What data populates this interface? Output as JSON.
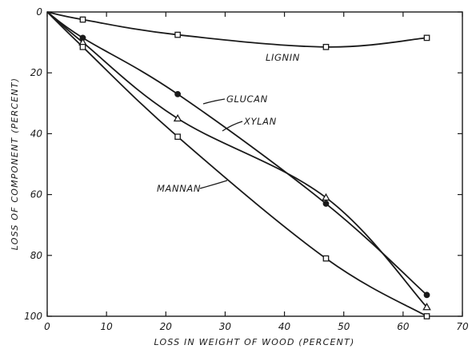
{
  "chart_data": {
    "type": "line",
    "xlabel": "LOSS IN WEIGHT OF WOOD (PERCENT)",
    "ylabel": "LOSS OF COMPONENT (PERCENT)",
    "xlim": [
      0,
      70
    ],
    "ylim": [
      0,
      100
    ],
    "y_inverted": true,
    "x_ticks": [
      0,
      10,
      20,
      30,
      40,
      50,
      60,
      70
    ],
    "y_ticks": [
      0,
      20,
      40,
      60,
      80,
      100
    ],
    "grid": false,
    "series": [
      {
        "name": "LIGNIN",
        "marker": "square",
        "x": [
          0,
          6,
          22,
          47,
          64
        ],
        "y": [
          0,
          2.5,
          7.5,
          11.5,
          8.5
        ]
      },
      {
        "name": "GLUCAN",
        "marker": "circle",
        "x": [
          0,
          6,
          22,
          47,
          64
        ],
        "y": [
          0,
          8.5,
          27,
          63,
          93
        ]
      },
      {
        "name": "XYLAN",
        "marker": "triangle",
        "x": [
          0,
          6,
          22,
          47,
          64
        ],
        "y": [
          0,
          10,
          35,
          61,
          97
        ]
      },
      {
        "name": "MANNAN",
        "marker": "square",
        "x": [
          0,
          6,
          22,
          47,
          64
        ],
        "y": [
          0,
          11.5,
          41,
          81,
          100
        ]
      }
    ]
  }
}
